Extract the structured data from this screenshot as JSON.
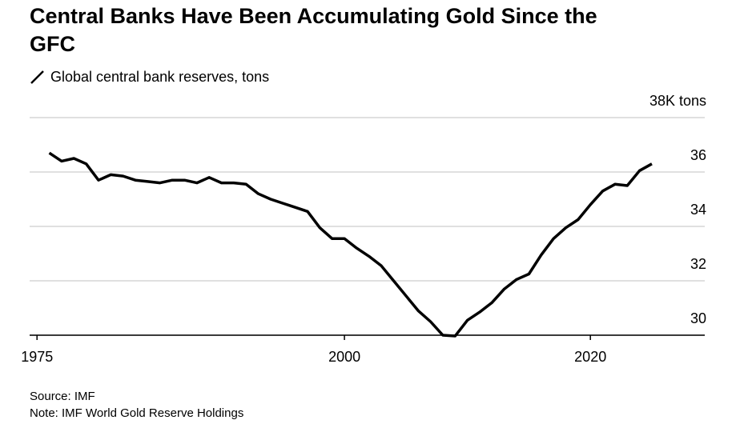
{
  "chart_data": {
    "type": "line",
    "title": "Central Banks Have Been Accumulating Gold Since the GFC",
    "subtitle": "Global central bank reserves, tons",
    "source": "Source: IMF",
    "note": "Note: IMF World Gold Reserve Holdings",
    "x": [
      1976,
      1977,
      1978,
      1979,
      1980,
      1981,
      1982,
      1983,
      1984,
      1985,
      1986,
      1987,
      1988,
      1989,
      1990,
      1991,
      1992,
      1993,
      1994,
      1995,
      1996,
      1997,
      1998,
      1999,
      2000,
      2001,
      2002,
      2003,
      2004,
      2005,
      2006,
      2007,
      2008,
      2009,
      2010,
      2011,
      2012,
      2013,
      2014,
      2015,
      2016,
      2017,
      2018,
      2019,
      2020,
      2021,
      2022,
      2023,
      2024,
      2025
    ],
    "series": [
      {
        "name": "Global central bank reserves, tons",
        "color": "#000000",
        "values": [
          36.7,
          36.4,
          36.5,
          36.3,
          35.7,
          35.9,
          35.85,
          35.7,
          35.65,
          35.6,
          35.7,
          35.7,
          35.6,
          35.8,
          35.6,
          35.6,
          35.55,
          35.2,
          35.0,
          34.85,
          34.7,
          34.55,
          33.95,
          33.55,
          33.55,
          33.2,
          32.9,
          32.55,
          32.0,
          31.45,
          30.9,
          30.5,
          30.0,
          29.97,
          30.55,
          30.85,
          31.2,
          31.7,
          32.05,
          32.25,
          32.95,
          33.55,
          33.95,
          34.25,
          34.8,
          35.3,
          35.55,
          35.5,
          36.05,
          36.3
        ]
      }
    ],
    "xlim": [
      1974.4,
      2029.3
    ],
    "xticks": [
      1975,
      2000,
      2020
    ],
    "ylim": [
      30,
      38
    ],
    "yticks": [
      30,
      32,
      34,
      36,
      {
        "value": 38,
        "label": "38K tons"
      }
    ],
    "grid": true
  }
}
